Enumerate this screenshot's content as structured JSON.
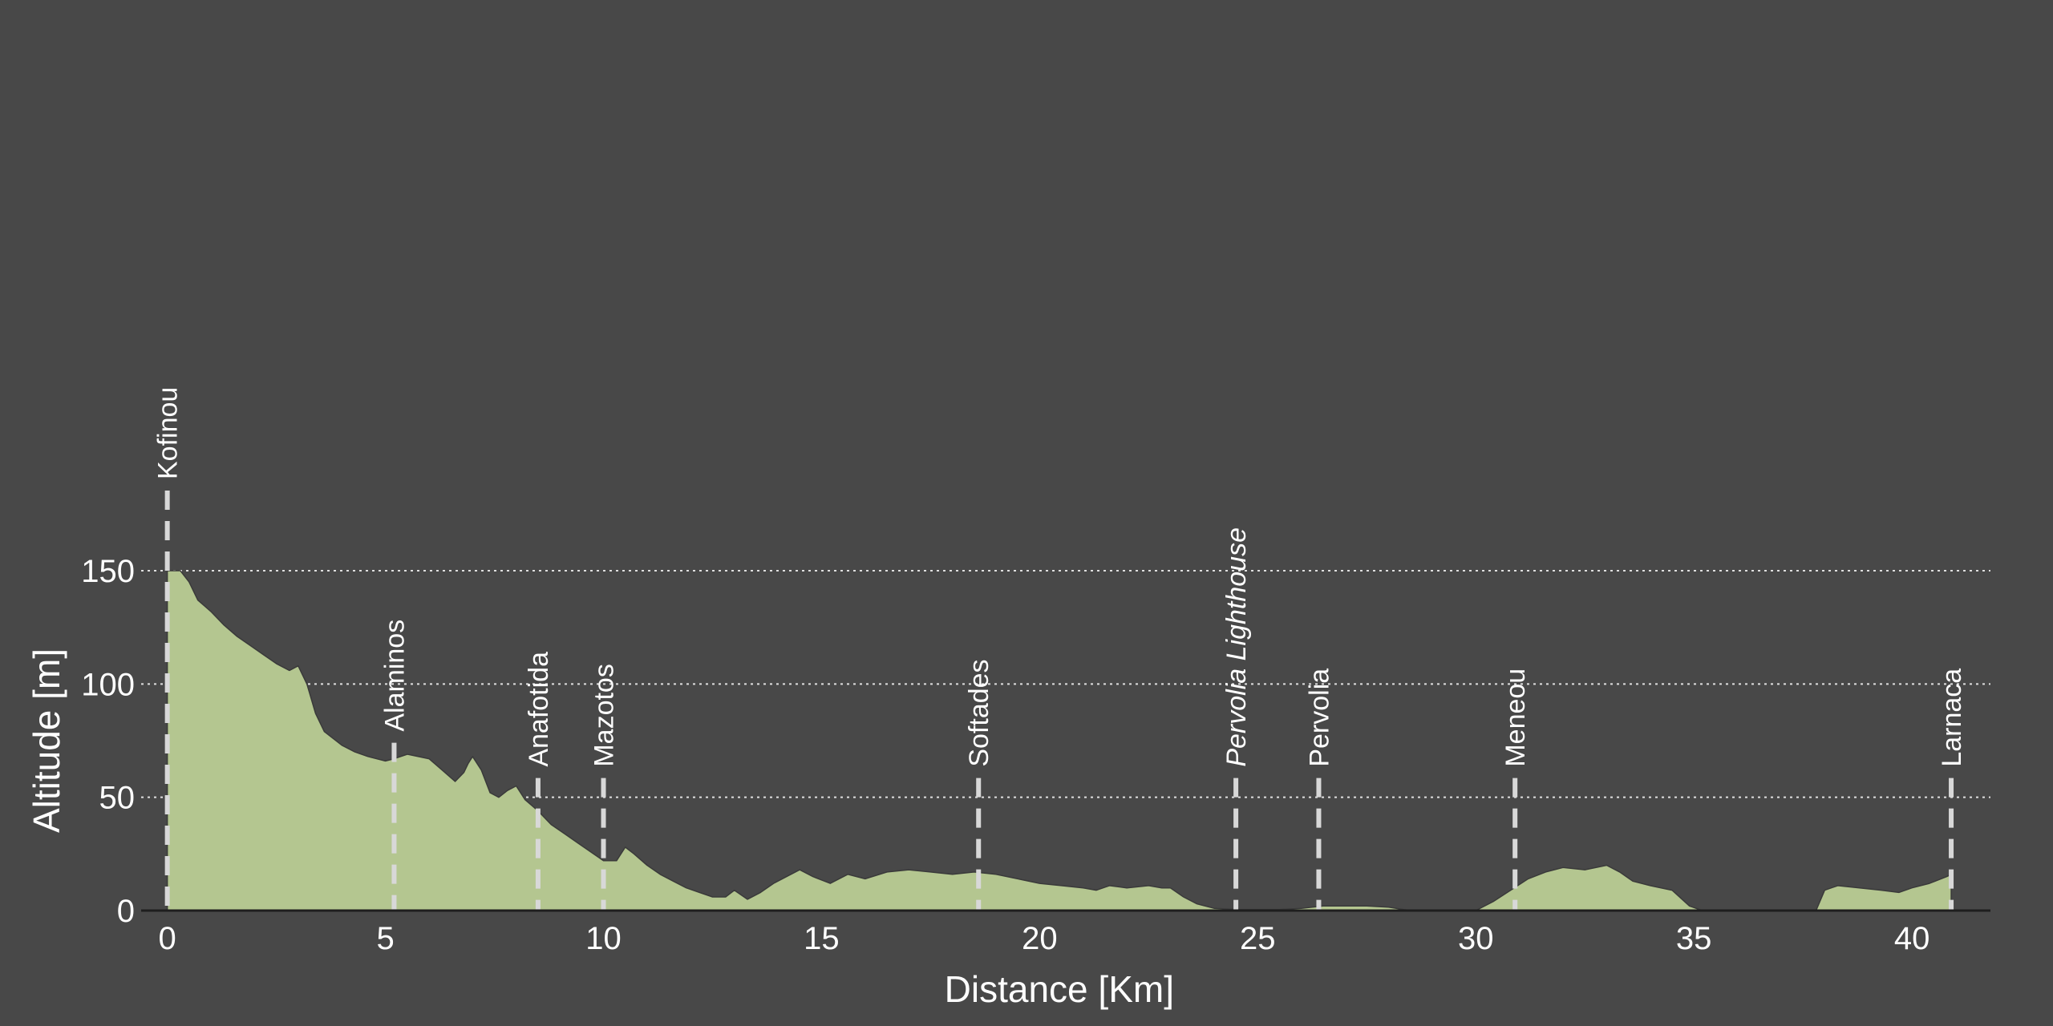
{
  "chart_data": {
    "type": "area",
    "xlabel": "Distance [Km]",
    "ylabel": "Altitude [m]",
    "xlim": [
      -0.6,
      41.8
    ],
    "ylim": [
      0,
      150
    ],
    "xticks": [
      0,
      5,
      10,
      15,
      20,
      25,
      30,
      35,
      40
    ],
    "yticks": [
      0,
      50,
      100,
      150
    ],
    "grid": {
      "y": true,
      "x": false,
      "style": "dotted"
    },
    "colors": {
      "background": "#484848",
      "fill": "#b4c690",
      "stroke": "#3a3a3a",
      "marker": "#d8d8d8",
      "grid": "#e0e0e0",
      "text": "#ffffff"
    },
    "series": [
      {
        "values_x": [
          0,
          0.3,
          0.5,
          0.7,
          1.0,
          1.3,
          1.6,
          1.9,
          2.2,
          2.5,
          2.8,
          3.0,
          3.2,
          3.4,
          3.6,
          3.8,
          4.0,
          4.3,
          4.6,
          5.0,
          5.2,
          5.5,
          6.0,
          6.3,
          6.6,
          6.8,
          6.9,
          7.0,
          7.2,
          7.4,
          7.6,
          7.8,
          8.0,
          8.2,
          8.5,
          8.8,
          9.1,
          9.4,
          9.7,
          10.0,
          10.3,
          10.5,
          10.7,
          11.0,
          11.3,
          11.6,
          11.9,
          12.2,
          12.5,
          12.8,
          13.0,
          13.3,
          13.6,
          13.9,
          14.2,
          14.5,
          14.8,
          15.2,
          15.6,
          16.0,
          16.5,
          17.0,
          17.5,
          18.0,
          18.5,
          19.0,
          19.5,
          20.0,
          20.5,
          21.0,
          21.3,
          21.6,
          22.0,
          22.5,
          22.8,
          23.0,
          23.3,
          23.6,
          24.0,
          24.5,
          25.0,
          25.5,
          26.0,
          26.5,
          27.0,
          27.5,
          28.0,
          28.5,
          29.0,
          29.5,
          30.0,
          30.4,
          30.8,
          31.2,
          31.6,
          32.0,
          32.5,
          33.0,
          33.3,
          33.6,
          34.0,
          34.5,
          34.9,
          35.2,
          35.6,
          36.0,
          36.5,
          37.0,
          37.5,
          37.8,
          38.0,
          38.3,
          38.8,
          39.3,
          39.7,
          40.0,
          40.4,
          40.8,
          40.9
        ],
        "values_y": [
          150,
          150,
          145,
          137,
          132,
          126,
          121,
          117,
          113,
          109,
          106,
          108,
          100,
          87,
          79,
          76,
          73,
          70,
          68,
          66,
          67,
          69,
          67,
          62,
          57,
          61,
          65,
          68,
          62,
          52,
          50,
          53,
          55,
          49,
          44,
          38,
          34,
          30,
          26,
          22,
          22,
          28,
          25,
          20,
          16,
          13,
          10,
          8,
          6,
          6,
          9,
          5,
          8,
          12,
          15,
          18,
          15,
          12,
          16,
          14,
          17,
          18,
          17,
          16,
          17,
          16,
          14,
          12,
          11,
          10,
          9,
          11,
          10,
          11,
          10,
          10,
          6,
          3,
          1,
          0.5,
          0.5,
          0.5,
          1,
          2,
          2,
          2,
          1.5,
          0,
          0,
          0,
          0,
          4,
          9,
          14,
          17,
          19,
          18,
          20,
          17,
          13,
          11,
          9,
          2,
          0,
          0,
          0,
          0,
          0,
          0,
          0,
          9,
          11,
          10,
          9,
          8,
          10,
          12,
          15,
          16
        ]
      }
    ],
    "places": [
      {
        "name": "Kofinou",
        "x": 0.0,
        "italic": false
      },
      {
        "name": "Alaminos",
        "x": 5.2,
        "italic": false
      },
      {
        "name": "Anafotida",
        "x": 8.5,
        "italic": false
      },
      {
        "name": "Mazotos",
        "x": 10.0,
        "italic": false
      },
      {
        "name": "Softades",
        "x": 18.6,
        "italic": false
      },
      {
        "name": "Pervolia Lighthouse",
        "x": 24.5,
        "italic": true
      },
      {
        "name": "Pervolia",
        "x": 26.4,
        "italic": false
      },
      {
        "name": "Meneou",
        "x": 30.9,
        "italic": false
      },
      {
        "name": "Larnaca",
        "x": 40.9,
        "italic": false
      }
    ]
  }
}
